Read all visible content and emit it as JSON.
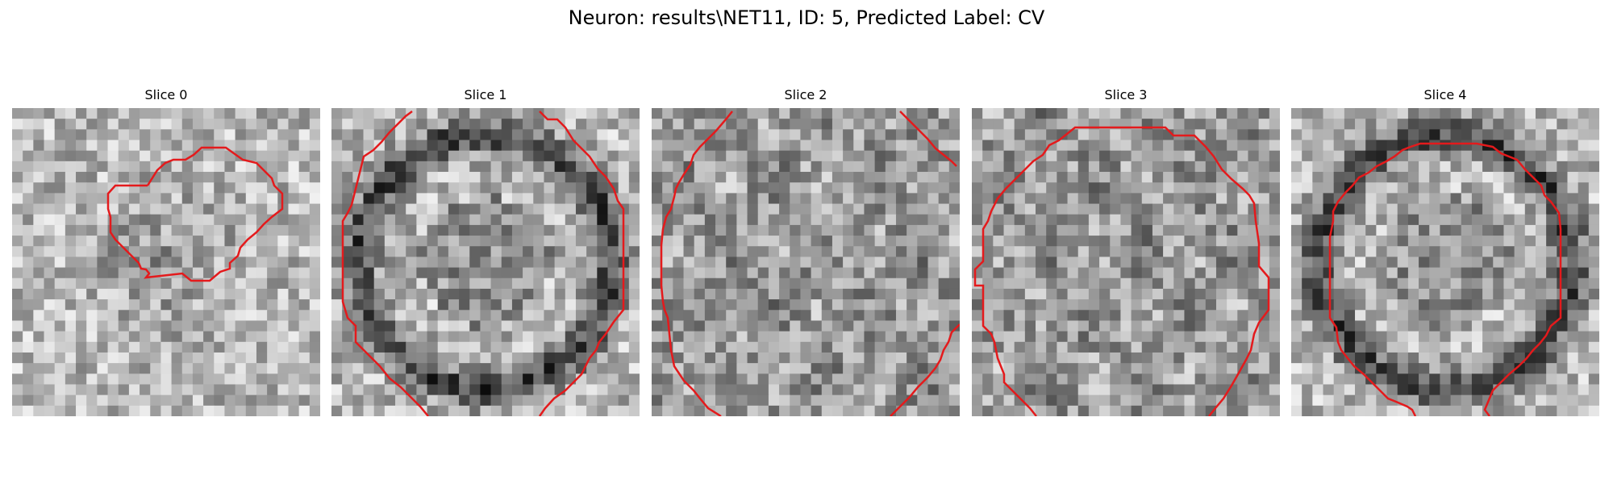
{
  "figure": {
    "title": "Neuron: results\\NET11, ID: 5, Predicted Label: CV",
    "contour_color": "#e41a1c"
  },
  "panels": [
    {
      "title": "Slice 0",
      "seed": 11,
      "pattern": "blob"
    },
    {
      "title": "Slice 1",
      "seed": 23,
      "pattern": "ring"
    },
    {
      "title": "Slice 2",
      "seed": 37,
      "pattern": "mottled"
    },
    {
      "title": "Slice 3",
      "seed": 41,
      "pattern": "mottled"
    },
    {
      "title": "Slice 4",
      "seed": 53,
      "pattern": "ring"
    }
  ]
}
